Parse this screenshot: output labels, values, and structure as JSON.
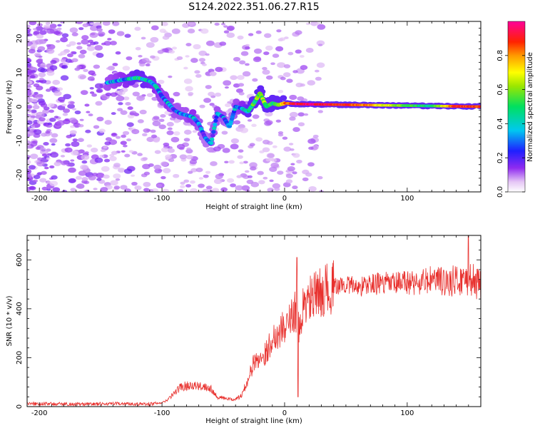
{
  "figure_title": "S124.2022.351.06.27.R15",
  "chart_data": [
    {
      "type": "heatmap",
      "title": "S124.2022.351.06.27.R15",
      "xlabel": "Height of straight line (km)",
      "ylabel": "Frequency (Hz)",
      "xlim": [
        -210,
        160
      ],
      "ylim": [
        -25,
        25
      ],
      "x_ticks": [
        -200,
        -100,
        0,
        100
      ],
      "y_ticks": [
        -20,
        -10,
        0,
        10,
        20
      ],
      "x_tick_labels": [
        "-200",
        "-100",
        "0",
        "100"
      ],
      "y_tick_labels": [
        "-20",
        "-10",
        "0",
        "10",
        "20"
      ],
      "grid": false,
      "colorbar": {
        "label": "Normalized spectral amplitude",
        "range": [
          0,
          1
        ],
        "ticks": [
          0.0,
          0.2,
          0.4,
          0.6,
          0.8
        ],
        "tick_labels": [
          "0.0",
          "0.2",
          "0.4",
          "0.6",
          "0.8"
        ],
        "colormap": "rainbow (white-purple-blue-cyan-green-yellow-orange-red-magenta)"
      },
      "ridge": {
        "x": [
          -145,
          -130,
          -120,
          -110,
          -105,
          -100,
          -95,
          -90,
          -85,
          -80,
          -75,
          -70,
          -65,
          -60,
          -55,
          -50,
          -45,
          -40,
          -35,
          -30,
          -25,
          -20,
          -15,
          -10,
          -5,
          0,
          10,
          20,
          40,
          60,
          80,
          100,
          120,
          140,
          160
        ],
        "y": [
          7,
          8,
          8.5,
          7.5,
          6,
          3,
          1,
          -1,
          -2,
          -2.5,
          -3,
          -5,
          -9,
          -11,
          -2,
          -3,
          -6,
          0,
          -0.5,
          -1.5,
          1,
          4,
          0,
          1,
          0.5,
          1,
          0.8,
          0.7,
          0.6,
          0.5,
          0.4,
          0.3,
          0.2,
          0.1,
          0
        ],
        "amplitude": [
          0.3,
          0.35,
          0.45,
          0.4,
          0.35,
          0.3,
          0.35,
          0.3,
          0.3,
          0.3,
          0.35,
          0.3,
          0.25,
          0.3,
          0.3,
          0.3,
          0.25,
          0.3,
          0.35,
          0.45,
          0.5,
          0.6,
          0.55,
          0.5,
          0.55,
          0.8,
          0.95,
          0.95,
          0.9,
          0.85,
          0.7,
          0.55,
          0.45,
          0.9,
          0.85
        ]
      }
    },
    {
      "type": "line",
      "xlabel": "Height of straight line (km)",
      "ylabel": "SNR (10 * v/v)",
      "xlim": [
        -210,
        160
      ],
      "ylim": [
        0,
        700
      ],
      "x_ticks": [
        -200,
        -100,
        0,
        100
      ],
      "y_ticks": [
        0,
        200,
        400,
        600
      ],
      "x_tick_labels": [
        "-200",
        "-100",
        "0",
        "100"
      ],
      "y_tick_labels": [
        "0",
        "200",
        "400",
        "600"
      ],
      "grid": false,
      "series": [
        {
          "color": "#e8312e",
          "x": [
            -210,
            -190,
            -170,
            -150,
            -130,
            -110,
            -100,
            -95,
            -90,
            -85,
            -80,
            -75,
            -70,
            -65,
            -60,
            -55,
            -50,
            -45,
            -40,
            -35,
            -30,
            -25,
            -20,
            -15,
            -10,
            -5,
            0,
            5,
            8,
            10,
            12,
            15,
            20,
            25,
            30,
            40,
            50,
            60,
            70,
            80,
            90,
            100,
            110,
            120,
            130,
            140,
            150,
            155,
            160
          ],
          "y": [
            12,
            11,
            10,
            11,
            12,
            10,
            15,
            30,
            55,
            80,
            85,
            90,
            80,
            85,
            75,
            40,
            35,
            30,
            30,
            45,
            110,
            180,
            200,
            220,
            280,
            300,
            330,
            350,
            400,
            380,
            300,
            400,
            440,
            450,
            470,
            490,
            500,
            490,
            500,
            505,
            500,
            510,
            505,
            520,
            510,
            515,
            520,
            515,
            480
          ]
        }
      ]
    }
  ]
}
